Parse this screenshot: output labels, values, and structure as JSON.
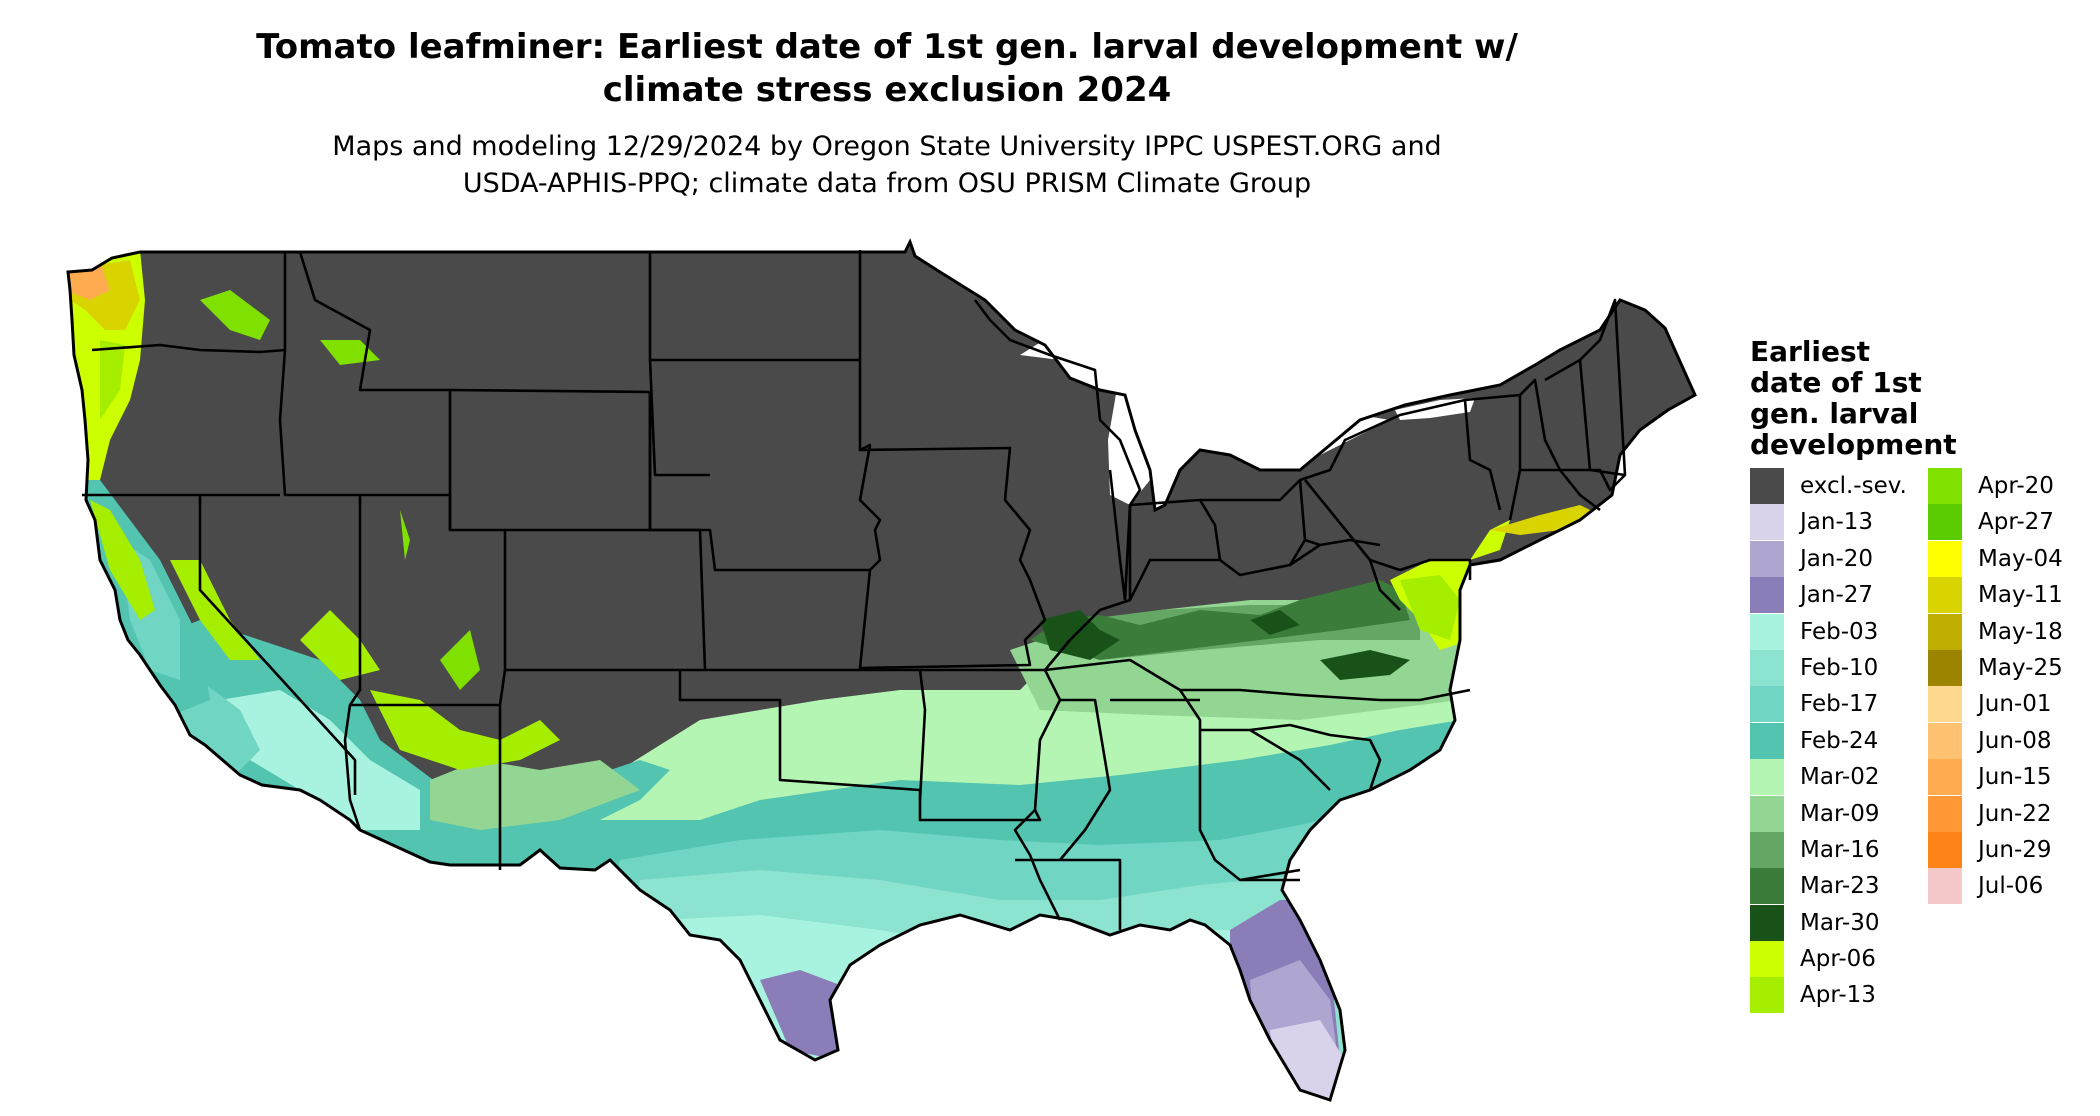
{
  "title": {
    "line1": "Tomato leafminer: Earliest date of 1st gen. larval development w/",
    "line2": "climate stress exclusion 2024"
  },
  "subtitle": {
    "line1": "Maps and modeling 12/29/2024 by Oregon State University IPPC USPEST.ORG and",
    "line2": "USDA-APHIS-PPQ; climate data from OSU PRISM Climate Group"
  },
  "legend": {
    "title_lines": [
      "Earliest",
      "date of 1st",
      "gen. larval",
      "development"
    ],
    "column1": [
      {
        "label": "excl.-sev.",
        "color": "#4a4a4a"
      },
      {
        "label": "Jan-13",
        "color": "#d8d2ea"
      },
      {
        "label": "Jan-20",
        "color": "#aea5d1"
      },
      {
        "label": "Jan-27",
        "color": "#8a7db8"
      },
      {
        "label": "Feb-03",
        "color": "#a8f2e0"
      },
      {
        "label": "Feb-10",
        "color": "#8ce3d0"
      },
      {
        "label": "Feb-17",
        "color": "#70d5c2"
      },
      {
        "label": "Feb-24",
        "color": "#52c4b0"
      },
      {
        "label": "Mar-02",
        "color": "#b4f5b4"
      },
      {
        "label": "Mar-09",
        "color": "#93d693"
      },
      {
        "label": "Mar-16",
        "color": "#64a764"
      },
      {
        "label": "Mar-23",
        "color": "#3b7c3b"
      },
      {
        "label": "Mar-30",
        "color": "#195219"
      },
      {
        "label": "Apr-06",
        "color": "#ccff00"
      },
      {
        "label": "Apr-13",
        "color": "#a6ee00"
      }
    ],
    "column2": [
      {
        "label": "Apr-20",
        "color": "#80e000"
      },
      {
        "label": "Apr-27",
        "color": "#5acc00"
      },
      {
        "label": "May-04",
        "color": "#ffff00"
      },
      {
        "label": "May-11",
        "color": "#d9d400"
      },
      {
        "label": "May-18",
        "color": "#bfae00"
      },
      {
        "label": "May-25",
        "color": "#9c8400"
      },
      {
        "label": "Jun-01",
        "color": "#ffd890"
      },
      {
        "label": "Jun-08",
        "color": "#ffc270"
      },
      {
        "label": "Jun-15",
        "color": "#ffab50"
      },
      {
        "label": "Jun-22",
        "color": "#ff9835"
      },
      {
        "label": "Jun-29",
        "color": "#ff8418"
      },
      {
        "label": "Jul-06",
        "color": "#f5c9c9"
      }
    ]
  },
  "map_colors": {
    "excluded": "#4a4a4a",
    "state_border": "#000000",
    "water": "#ffffff"
  }
}
